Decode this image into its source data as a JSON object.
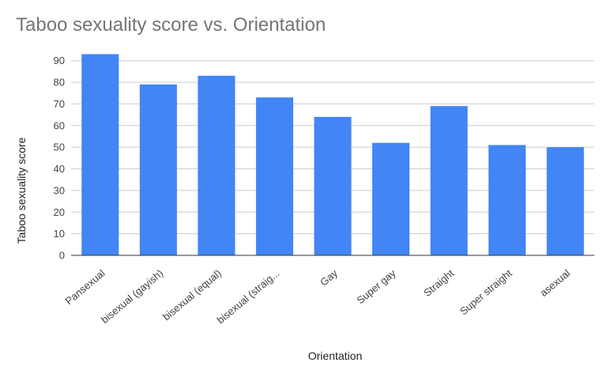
{
  "chart_data": {
    "type": "bar",
    "title": "Taboo sexuality score vs. Orientation",
    "xlabel": "Orientation",
    "ylabel": "Taboo sexuality score",
    "categories": [
      "Pansexual",
      "bisexual (gayish)",
      "bisexual (equal)",
      "bisexual (straig...",
      "Gay",
      "Super gay",
      "Straight",
      "Super straight",
      "asexual"
    ],
    "values": [
      93,
      79,
      83,
      73,
      64,
      52,
      69,
      51,
      50
    ],
    "ylim": [
      0,
      90
    ],
    "yticks": [
      0,
      10,
      20,
      30,
      40,
      50,
      60,
      70,
      80,
      90
    ],
    "grid": true,
    "legend": "none",
    "bar_color": "#4285f4"
  }
}
